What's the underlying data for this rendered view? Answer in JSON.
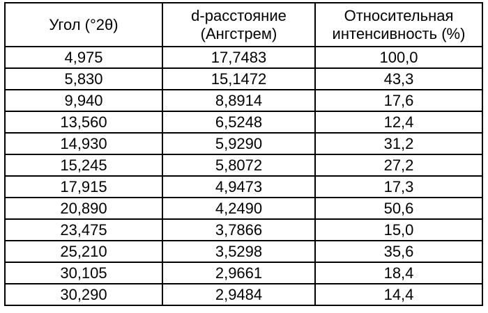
{
  "table": {
    "headers": [
      {
        "lines": [
          "Угол (°2θ)"
        ]
      },
      {
        "lines": [
          "d-расстояние",
          "(Ангстрем)"
        ]
      },
      {
        "lines": [
          "Относительная",
          "интенсивность (%)"
        ]
      }
    ],
    "rows": [
      [
        "4,975",
        "17,7483",
        "100,0"
      ],
      [
        "5,830",
        "15,1472",
        "43,3"
      ],
      [
        "9,940",
        "8,8914",
        "17,6"
      ],
      [
        "13,560",
        "6,5248",
        "12,4"
      ],
      [
        "14,930",
        "5,9290",
        "31,2"
      ],
      [
        "15,245",
        "5,8072",
        "27,2"
      ],
      [
        "17,915",
        "4,9473",
        "17,3"
      ],
      [
        "20,890",
        "4,2490",
        "50,6"
      ],
      [
        "23,475",
        "3,7866",
        "15,0"
      ],
      [
        "25,210",
        "3,5298",
        "35,6"
      ],
      [
        "30,105",
        "2,9661",
        "18,4"
      ],
      [
        "30,290",
        "2,9484",
        "14,4"
      ]
    ]
  }
}
